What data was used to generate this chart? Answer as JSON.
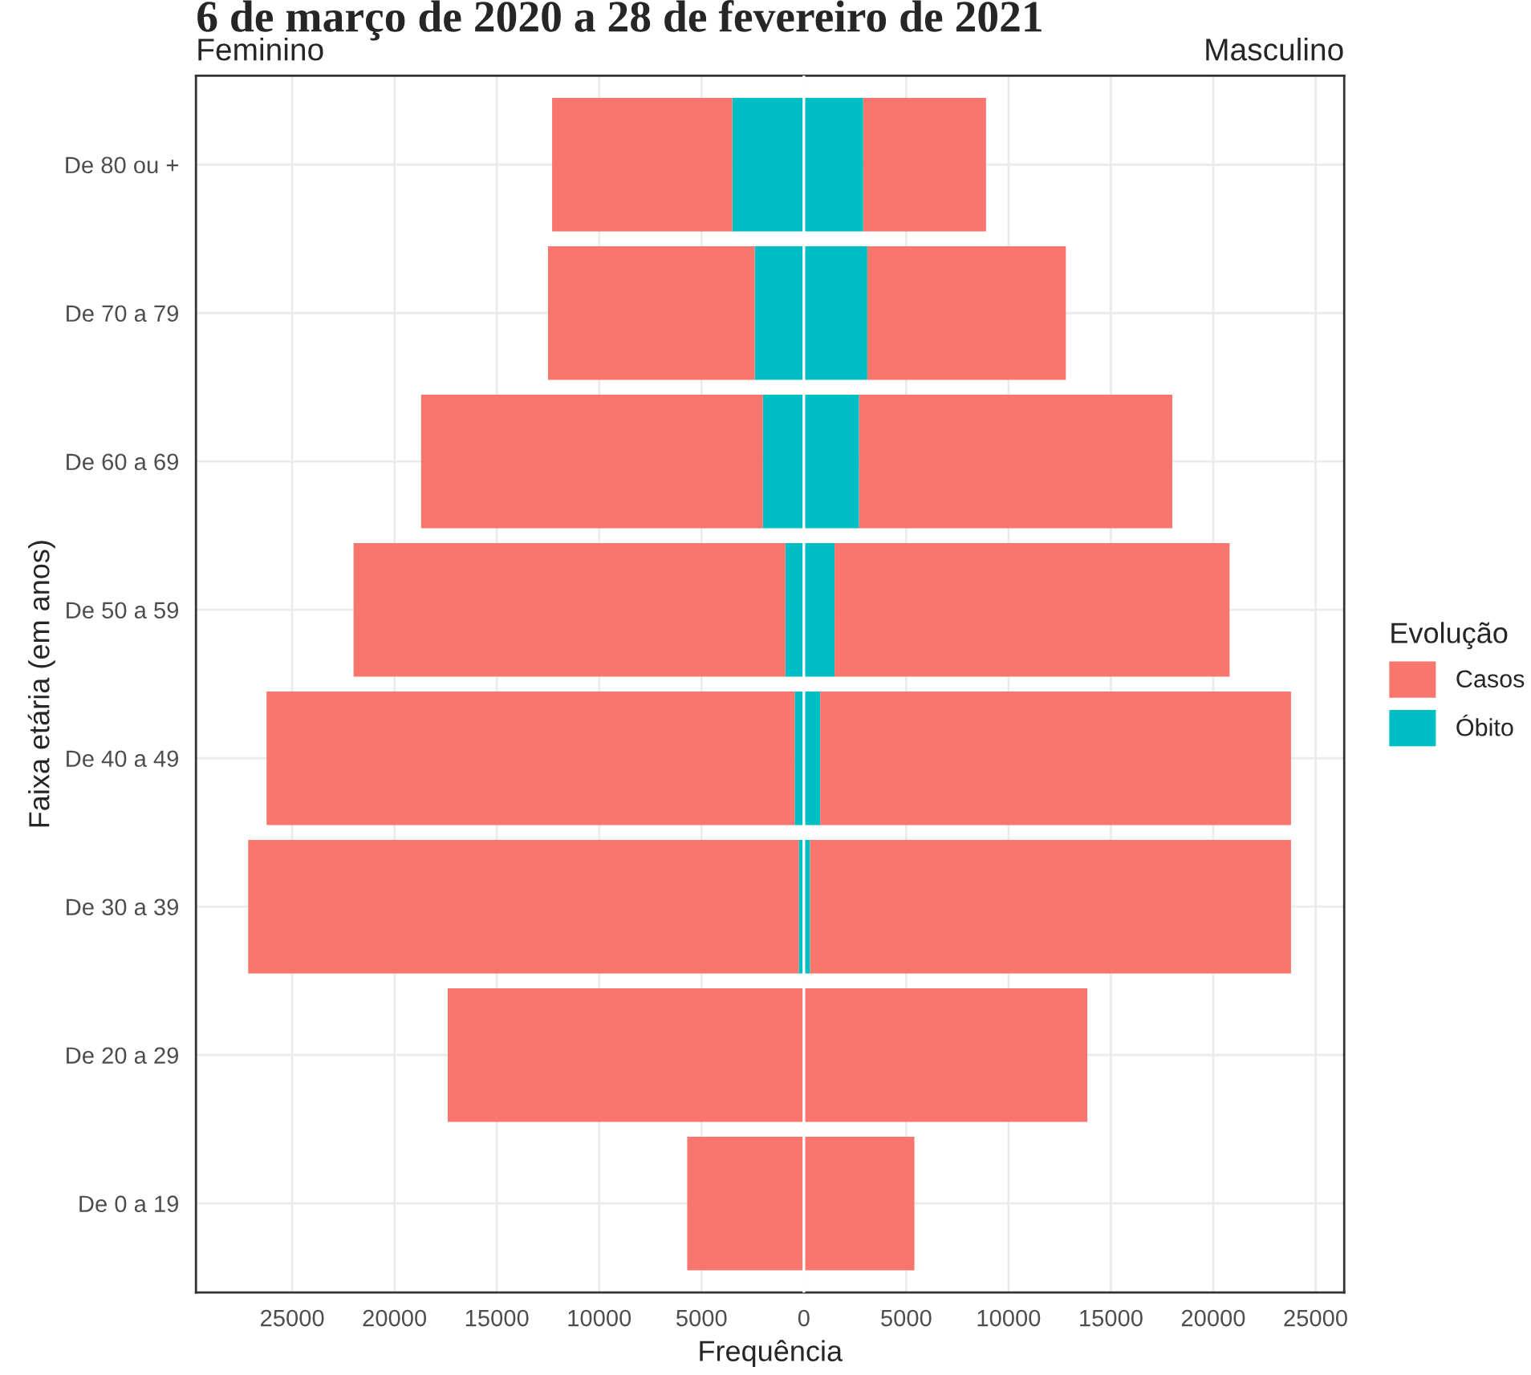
{
  "chart_data": {
    "type": "bar",
    "orientation": "horizontal",
    "stacked": true,
    "title": "6 de março de 2020 a 28 de fevereiro de 2021",
    "annotations": [
      "Feminino",
      "Masculino"
    ],
    "xlabel": "Frequência",
    "ylabel": "Faixa etária (em anos)",
    "legend_title": "Evolução",
    "categories": [
      "De 80 ou +",
      "De 70 a 79",
      "De 60 a 69",
      "De 50 a 59",
      "De 40 a 49",
      "De 30 a 39",
      "De 20 a 29",
      "De 0 a 19"
    ],
    "series": [
      {
        "name": "Óbito",
        "color": "#00bfc4",
        "values": [
          -3500,
          -2400,
          -2000,
          -900,
          -450,
          -250,
          null,
          null
        ]
      },
      {
        "name": "Casos",
        "color": "#f8766d",
        "values": [
          -8800,
          -10100,
          -16700,
          -21100,
          -25800,
          -26900,
          -17400,
          -5700
        ]
      },
      {
        "color": "#00bfc4",
        "values": [
          2900,
          3100,
          2700,
          1500,
          800,
          300,
          null,
          null
        ]
      },
      {
        "color": "#f8766d",
        "values": [
          6000,
          9700,
          15300,
          19300,
          23000,
          23500,
          13850,
          5400
        ]
      }
    ],
    "xlim": [
      -29700,
      26400
    ],
    "xticks": [
      {
        "value": -25000,
        "label": "25000"
      },
      {
        "value": -20000,
        "label": "20000"
      },
      {
        "value": -15000,
        "label": "15000"
      },
      {
        "value": -10000,
        "label": "10000"
      },
      {
        "value": -5000,
        "label": "5000"
      },
      0,
      5000,
      10000,
      15000,
      20000,
      25000
    ],
    "ref_lines": [
      {
        "axis": "x",
        "value": 0,
        "color": "#ffffff"
      }
    ],
    "grid": true,
    "legend": "right"
  }
}
